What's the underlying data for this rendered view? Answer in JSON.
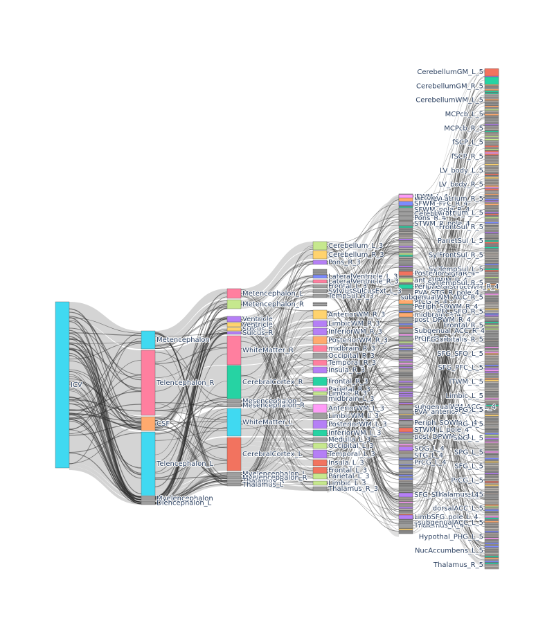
{
  "colors": {
    "cyan": "#40d9f1",
    "pink": "#ff7f9f",
    "orange": "#ffaa6e",
    "green": "#c6e88e",
    "teal": "#26d3a3",
    "purple": "#b57ff6",
    "salmon": "#f2735f",
    "yellow": "#ffd36e",
    "magenta": "#ff9cf7",
    "blue": "#7c8bff",
    "gray": "#9e9e9e",
    "link": "#c9c9c9",
    "link_dark": "#2b2b2b"
  },
  "chart_data": {
    "type": "sankey",
    "level1": [
      {
        "name": "ICV",
        "color": "cyan"
      }
    ],
    "level2": [
      {
        "name": "Metencephalon",
        "color": "cyan"
      },
      {
        "name": "Telencephalon_R",
        "color": "pink"
      },
      {
        "name": "CSF",
        "color": "orange"
      },
      {
        "name": "Telencephalon_L",
        "color": "cyan"
      },
      {
        "name": "Myelencephalon",
        "color": "gray"
      },
      {
        "name": "Diencephalon_L",
        "color": "gray"
      }
    ],
    "level3": [
      {
        "name": "Metencephalon_L",
        "color": "pink"
      },
      {
        "name": "Metencephalon_R",
        "color": "green"
      },
      {
        "name": "Ventricle",
        "color": "purple"
      },
      {
        "name": "Ventricle",
        "color": "yellow"
      },
      {
        "name": "Sulcus_L",
        "color": "yellow"
      },
      {
        "name": "Sulcus_R",
        "color": "purple"
      },
      {
        "name": "WhiteMatter_R",
        "color": "pink"
      },
      {
        "name": "CerebralCortex_R",
        "color": "teal"
      },
      {
        "name": "Mesencephalon_L",
        "color": "gray"
      },
      {
        "name": "Mesencephalon_R",
        "color": "gray"
      },
      {
        "name": "WhiteMatter_L",
        "color": "cyan"
      },
      {
        "name": "CerebralCortex_L",
        "color": "salmon"
      },
      {
        "name": "Myelencephalon_L",
        "color": "gray"
      },
      {
        "name": "Myelencephalon_R",
        "color": "gray"
      },
      {
        "name": "Thalamus_R",
        "color": "gray"
      },
      {
        "name": "Thalamus_L",
        "color": "gray"
      }
    ],
    "level4": [
      {
        "name": "Cerebellum_L_3",
        "color": "green"
      },
      {
        "name": "Cerebellum_R_3",
        "color": "yellow"
      },
      {
        "name": "Pons_R_3",
        "color": "purple"
      },
      {
        "name": "LateralVentricle_L_3",
        "color": "blue"
      },
      {
        "name": "LateralVentricle_R_3",
        "color": "pink"
      },
      {
        "name": "Frontal_L_3",
        "color": "gray"
      },
      {
        "name": "SylviusSulcusExt_L_3",
        "color": "gray"
      },
      {
        "name": "TempSul_R_3",
        "color": "gray"
      },
      {
        "name": "AnteriorWM_R_3",
        "color": "yellow"
      },
      {
        "name": "LimbicWM_R_3",
        "color": "purple"
      },
      {
        "name": "InferiorWM_R_3",
        "color": "purple"
      },
      {
        "name": "PosteriorWM_R_3",
        "color": "orange"
      },
      {
        "name": "midbrain_R_3",
        "color": "pink"
      },
      {
        "name": "Occipital_R_3",
        "color": "gray"
      },
      {
        "name": "Temporal_R_3",
        "color": "pink"
      },
      {
        "name": "Insula_R_3",
        "color": "purple"
      },
      {
        "name": "Frontal_R_3",
        "color": "teal"
      },
      {
        "name": "Parietal_R_3",
        "color": "magenta"
      },
      {
        "name": "Limbic_R_3",
        "color": "green"
      },
      {
        "name": "midbrain_L_3",
        "color": "gray"
      },
      {
        "name": "AnteriorWM_L_3",
        "color": "magenta"
      },
      {
        "name": "LimbicWM_L_3",
        "color": "gray"
      },
      {
        "name": "PosteriorWM_L_3",
        "color": "purple"
      },
      {
        "name": "InferiorWM_L_3",
        "color": "teal"
      },
      {
        "name": "Medulla_L_3",
        "color": "gray"
      },
      {
        "name": "Occipital_L_3",
        "color": "green"
      },
      {
        "name": "Temporal_L_3",
        "color": "purple"
      },
      {
        "name": "Insula_L_3",
        "color": "salmon"
      },
      {
        "name": "Frontal_L_3",
        "color": "salmon"
      },
      {
        "name": "Parietal_L_3",
        "color": "green"
      },
      {
        "name": "Limbic_L_3",
        "color": "green"
      },
      {
        "name": "Thalamus_R_3",
        "color": "gray"
      }
    ],
    "level5": [
      {
        "name": "IFWM_L_4",
        "color": "magenta"
      },
      {
        "name": "MFWM_L_4",
        "color": "orange"
      },
      {
        "name": "SFWM_PFC_R_4",
        "color": "blue"
      },
      {
        "name": "SFWM_pole_R_4",
        "color": "gray"
      },
      {
        "name": "Cerebellum_L_4",
        "color": "gray"
      },
      {
        "name": "Pons_R_4",
        "color": "gray"
      },
      {
        "name": "STWM_R_pole_4",
        "color": "gray"
      },
      {
        "name": "PosteriorSigraR_4",
        "color": "salmon"
      },
      {
        "name": "ant_DPWM_R_4",
        "color": "green"
      },
      {
        "name": "PeripheralStructWM_R_4",
        "color": "teal"
      },
      {
        "name": "PVA_STG_R_pole_4",
        "color": "gray"
      },
      {
        "name": "SCC_R_4",
        "color": "gray"
      },
      {
        "name": "PrCG_R_4",
        "color": "orange"
      },
      {
        "name": "Periph_SOWM_R_4",
        "color": "gray"
      },
      {
        "name": "midbrain_R_4",
        "color": "orange"
      },
      {
        "name": "post_DPWM_R_4",
        "color": "gray"
      },
      {
        "name": "Subgenual_ACC_R_4",
        "color": "gray"
      },
      {
        "name": "PrCG_R_4",
        "color": "gray"
      },
      {
        "name": "subgenualWM_ACC_L_4",
        "color": "gray"
      },
      {
        "name": "PVA_anterior_L_4",
        "color": "gray"
      },
      {
        "name": "Periph_SOWM_L_4",
        "color": "gray"
      },
      {
        "name": "STWM_L_pole_4",
        "color": "salmon"
      },
      {
        "name": "post_DPWM_L_4",
        "color": "gray"
      },
      {
        "name": "SOG_L_4",
        "color": "purple"
      },
      {
        "name": "STG_L_4",
        "color": "gray"
      },
      {
        "name": "PrCG_L_4",
        "color": "gray"
      },
      {
        "name": "SFG_STG_L_pole_4",
        "color": "purple"
      },
      {
        "name": "LimbSFG_pole_L_4",
        "color": "purple"
      },
      {
        "name": "Thalamus_R_4",
        "color": "gray"
      }
    ],
    "level6": [
      "CerebellumGM_L_5",
      "CerebellumGM_R_5",
      "CerebellumWM_L_5",
      "MCPcb_L_5",
      "MCPcb_R_5",
      "fSCP_L_5",
      "fSCP_R_5",
      "LV_body_L_5",
      "LV_body_R_5",
      "LV_atrium_R_5",
      "LV_atrium_L_5",
      "FrontSul_R_5",
      "ParietSul_L_5",
      "SylFrontSul_R_5",
      "SylTempSul_L_5",
      "SylTempSul_R_5",
      "subgenualWM_ACC_R_5",
      "PFC_SFO_R_5",
      "Frontal_R_5",
      "IFG_orbitalis_R_5",
      "SFG_SFO_L_5",
      "SFG_PFC_L_5",
      "ITWM_L_5",
      "Limbic_L_5",
      "SPG_L_5",
      "RG_L_5",
      "SOG_L_5",
      "SPG_L_5",
      "SFG_L_5",
      "PrCG_L_5",
      "Thalamus_L_5",
      "dorsalACC_L_5",
      "subgenualACC_L_5",
      "Hypothal_PHG_L_5",
      "NucAccumbens_L_5",
      "Thalamus_R_5"
    ]
  }
}
